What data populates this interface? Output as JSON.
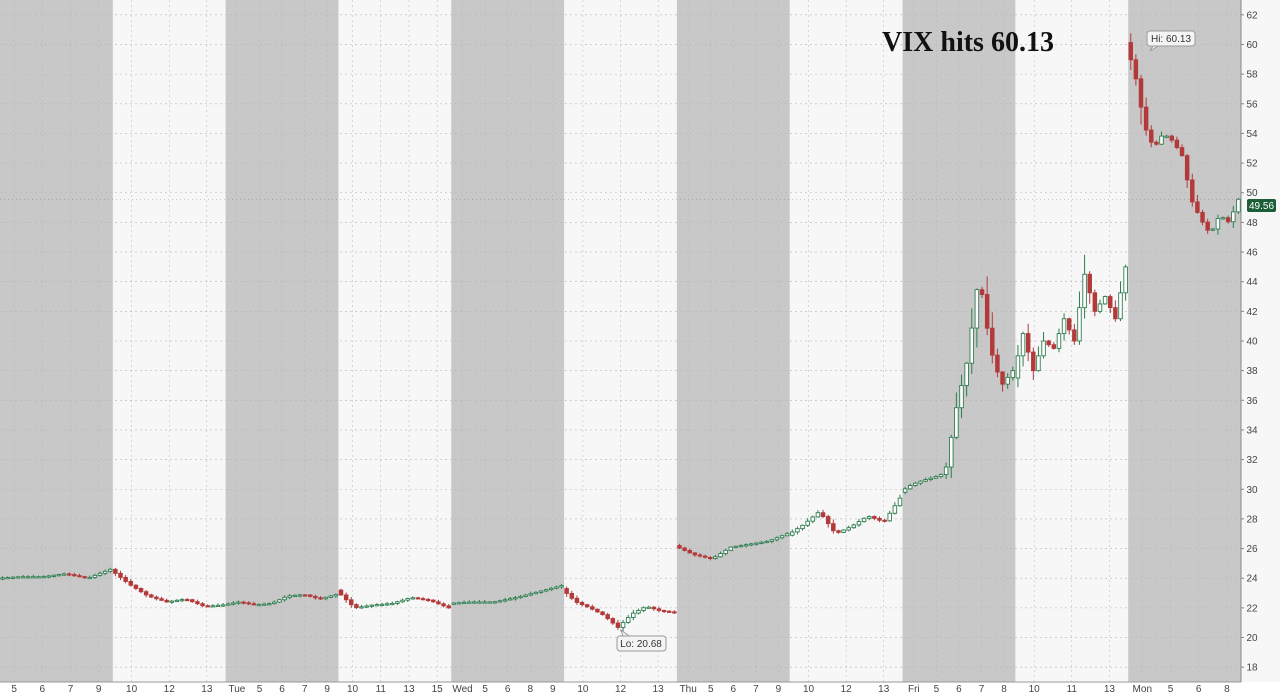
{
  "chart_data": {
    "type": "candlestick",
    "title": "VIX hits 60.13",
    "xlabel": "",
    "ylabel": "",
    "ylim": [
      17,
      63
    ],
    "y_ticks": [
      18,
      20,
      22,
      24,
      26,
      28,
      30,
      32,
      34,
      36,
      38,
      40,
      42,
      44,
      46,
      48,
      50,
      52,
      54,
      56,
      58,
      60,
      62
    ],
    "grid": true,
    "legend": "none",
    "colors": {
      "up": "#2e7d4f",
      "down": "#b23a3a",
      "session_shade": "#c8c8c8",
      "last_badge": "#1b5e37"
    },
    "sessions": [
      {
        "label": "",
        "ticks": [
          "5",
          "6",
          "7",
          "9"
        ],
        "key_points": [
          24.0,
          24.1,
          24.1,
          24.3,
          24.0,
          24.6
        ]
      },
      {
        "label": "",
        "ticks": [
          "10",
          "12",
          "13"
        ],
        "key_points": [
          24.6,
          23.6,
          22.8,
          22.4,
          22.6,
          22.1,
          22.2
        ]
      },
      {
        "label": "Tue",
        "ticks": [
          "5",
          "6",
          "7",
          "9"
        ],
        "key_points": [
          22.2,
          22.4,
          22.2,
          22.3,
          22.8,
          22.9,
          22.6,
          22.9
        ]
      },
      {
        "label": "",
        "ticks": [
          "10",
          "11",
          "13",
          "15"
        ],
        "key_points": [
          23.2,
          22.0,
          22.2,
          22.3,
          22.7,
          22.5,
          22.0
        ]
      },
      {
        "label": "Wed",
        "ticks": [
          "5",
          "6",
          "8",
          "9"
        ],
        "key_points": [
          22.3,
          22.4,
          22.4,
          22.7,
          23.1,
          23.5
        ]
      },
      {
        "label": "",
        "ticks": [
          "10",
          "12",
          "13"
        ],
        "key_points": [
          23.3,
          22.4,
          22.0,
          21.5,
          20.68,
          21.6,
          22.1,
          21.8,
          21.7
        ]
      },
      {
        "label": "Thu",
        "ticks": [
          "5",
          "6",
          "7",
          "9"
        ],
        "key_points": [
          26.2,
          25.6,
          25.3,
          26.1,
          26.3,
          26.5,
          27.0
        ]
      },
      {
        "label": "",
        "ticks": [
          "10",
          "12",
          "13"
        ],
        "key_points": [
          26.9,
          27.6,
          28.5,
          27.0,
          27.5,
          28.2,
          27.8,
          29.4
        ]
      },
      {
        "label": "Fri",
        "ticks": [
          "5",
          "6",
          "7",
          "8"
        ],
        "key_points": [
          29.8,
          30.3,
          30.6,
          30.8,
          31.1,
          35.5,
          38.8,
          44.5,
          39.5,
          37.0,
          38.0
        ]
      },
      {
        "label": "",
        "ticks": [
          "10",
          "11",
          "13"
        ],
        "key_points": [
          37.5,
          40.5,
          38.0,
          40.0,
          39.5,
          41.5,
          40.0,
          44.5,
          42.0,
          43.0,
          41.5,
          45.0
        ]
      },
      {
        "label": "Mon",
        "ticks": [
          "5",
          "6",
          "8"
        ],
        "key_points": [
          60.13,
          58.0,
          54.5,
          53.0,
          54.0,
          53.5,
          52.5,
          49.5,
          48.2,
          47.2,
          48.5,
          48.0,
          49.56
        ]
      }
    ],
    "annotations": {
      "high": "Hi: 60.13",
      "low": "Lo: 20.68",
      "last": "49.56"
    }
  }
}
